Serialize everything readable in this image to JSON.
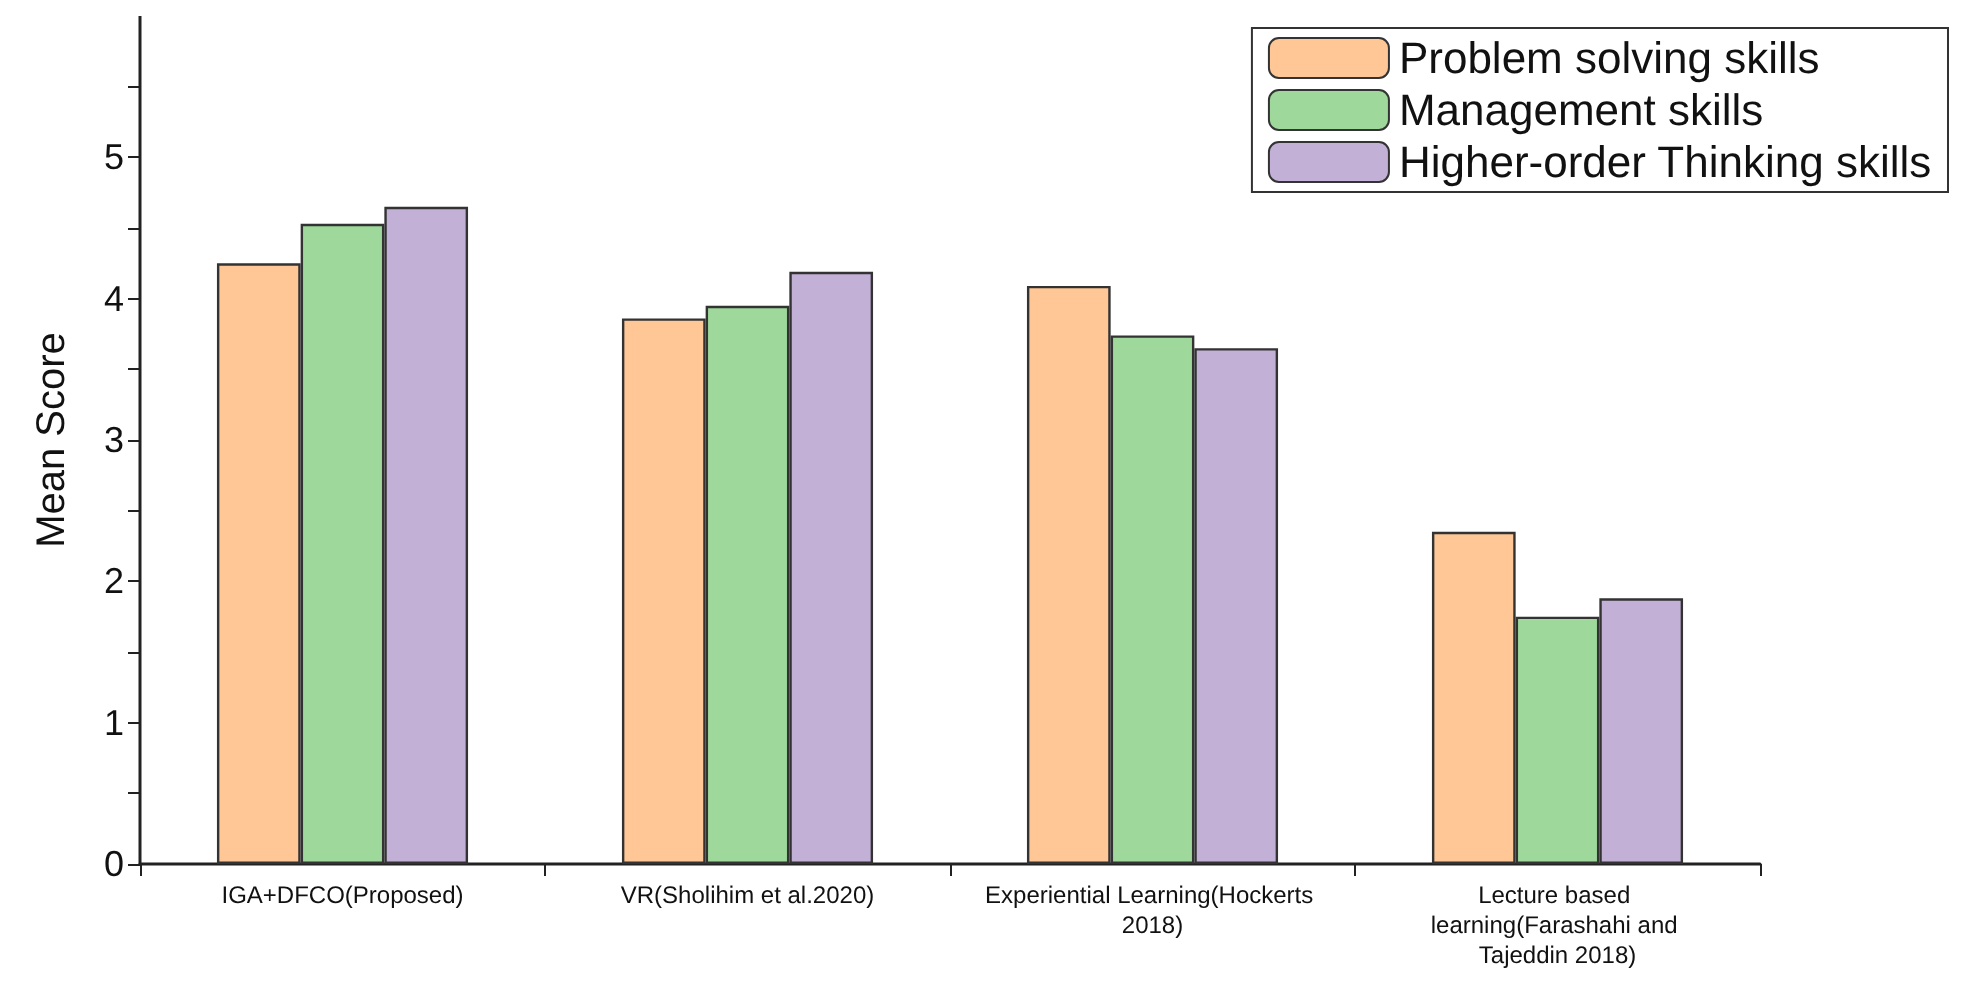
{
  "chart_data": {
    "type": "bar",
    "ylabel": "Mean Score",
    "categories": [
      "IGA+DFCO(Proposed)",
      "VR(Sholihim et al.2020)",
      "Experiential Learning(Hockerts 2018)",
      "Lecture based learning(Farashahi and Tajeddin 2018)"
    ],
    "series": [
      {
        "name": "Problem solving skills",
        "color": "#fec795",
        "values": [
          4.25,
          3.86,
          4.09,
          2.35
        ]
      },
      {
        "name": "Management skills",
        "color": "#9ed89b",
        "values": [
          4.53,
          3.95,
          3.74,
          1.75
        ]
      },
      {
        "name": "Higher-order Thinking skills",
        "color": "#c3b0d6",
        "values": [
          4.65,
          4.19,
          3.65,
          1.88
        ]
      }
    ],
    "ylim": [
      0,
      6
    ],
    "yticks": [
      0,
      {
        "value": 0.5,
        "label": null
      },
      1,
      {
        "value": 1.5,
        "label": null
      },
      2,
      {
        "value": 2.5,
        "label": null
      },
      3,
      {
        "value": 3.5,
        "label": null
      },
      4,
      {
        "value": 4.5,
        "label": null
      },
      5,
      {
        "value": 5.5,
        "label": null
      }
    ],
    "grid": false,
    "legend": "top right"
  }
}
